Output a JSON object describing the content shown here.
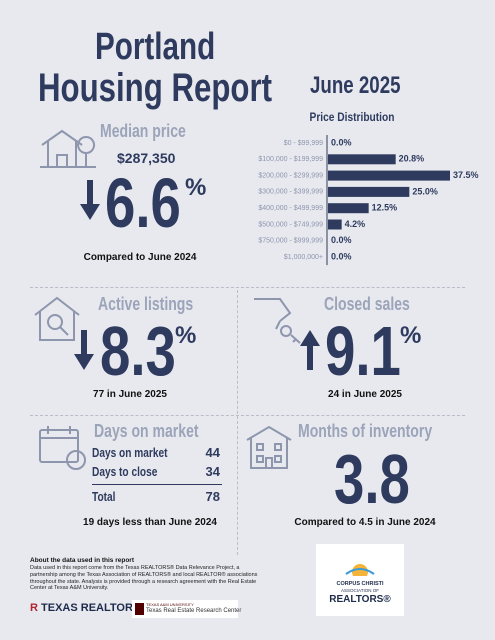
{
  "header": {
    "title_line1": "Portland",
    "title_line2": "Housing Report",
    "period": "June 2025"
  },
  "chart_data": {
    "type": "bar",
    "orientation": "horizontal",
    "title": "Price Distribution",
    "categories": [
      "$0 - $99,999",
      "$100,000 - $199,999",
      "$200,000 - $299,999",
      "$300,000 - $399,999",
      "$400,000 - $499,999",
      "$500,000 - $749,999",
      "$750,000 - $999,999",
      "$1,000,000+"
    ],
    "values": [
      0.0,
      20.8,
      37.5,
      25.0,
      12.5,
      4.2,
      0.0,
      0.0
    ],
    "value_labels": [
      "0.0%",
      "20.8%",
      "37.5%",
      "25.0%",
      "12.5%",
      "4.2%",
      "0.0%",
      "0.0%"
    ],
    "color": "#2e3b5e"
  },
  "median_price": {
    "heading": "Median price",
    "value": "$287,350",
    "change": "6.6",
    "unit": "%",
    "direction": "down",
    "note": "Compared to June 2024"
  },
  "active_listings": {
    "heading": "Active listings",
    "change": "8.3",
    "unit": "%",
    "direction": "down",
    "note": "77 in June 2025"
  },
  "closed_sales": {
    "heading": "Closed sales",
    "change": "9.1",
    "unit": "%",
    "direction": "up",
    "note": "24 in June 2025"
  },
  "days_on_market": {
    "heading": "Days on market",
    "rows": [
      [
        "Days on market",
        "44"
      ],
      [
        "Days to close",
        "34"
      ]
    ],
    "total": [
      "Total",
      "78"
    ],
    "note": "19 days less than June 2024"
  },
  "months_of_inventory": {
    "heading": "Months of inventory",
    "value": "3.8",
    "note": "Compared to 4.5 in June 2024"
  },
  "footer": {
    "about_title": "About the data used in this report",
    "about_text": "Data used in this report come from the Texas REALTORS® Data Relevance Project, a partnership among the Texas Association of REALTORS® and local REALTOR® associations throughout the state. Analysis is provided through a research agreement with the Real Estate Center at Texas A&M University.",
    "texas_realtors": "TEXAS REALTORS",
    "university": "TEXAS A&M UNIVERSITY",
    "research_center": "Texas Real Estate Research Center",
    "cc_line1": "CORPUS CHRISTI",
    "cc_line2": "ASSOCIATION OF",
    "cc_line3": "REALTORS®"
  }
}
